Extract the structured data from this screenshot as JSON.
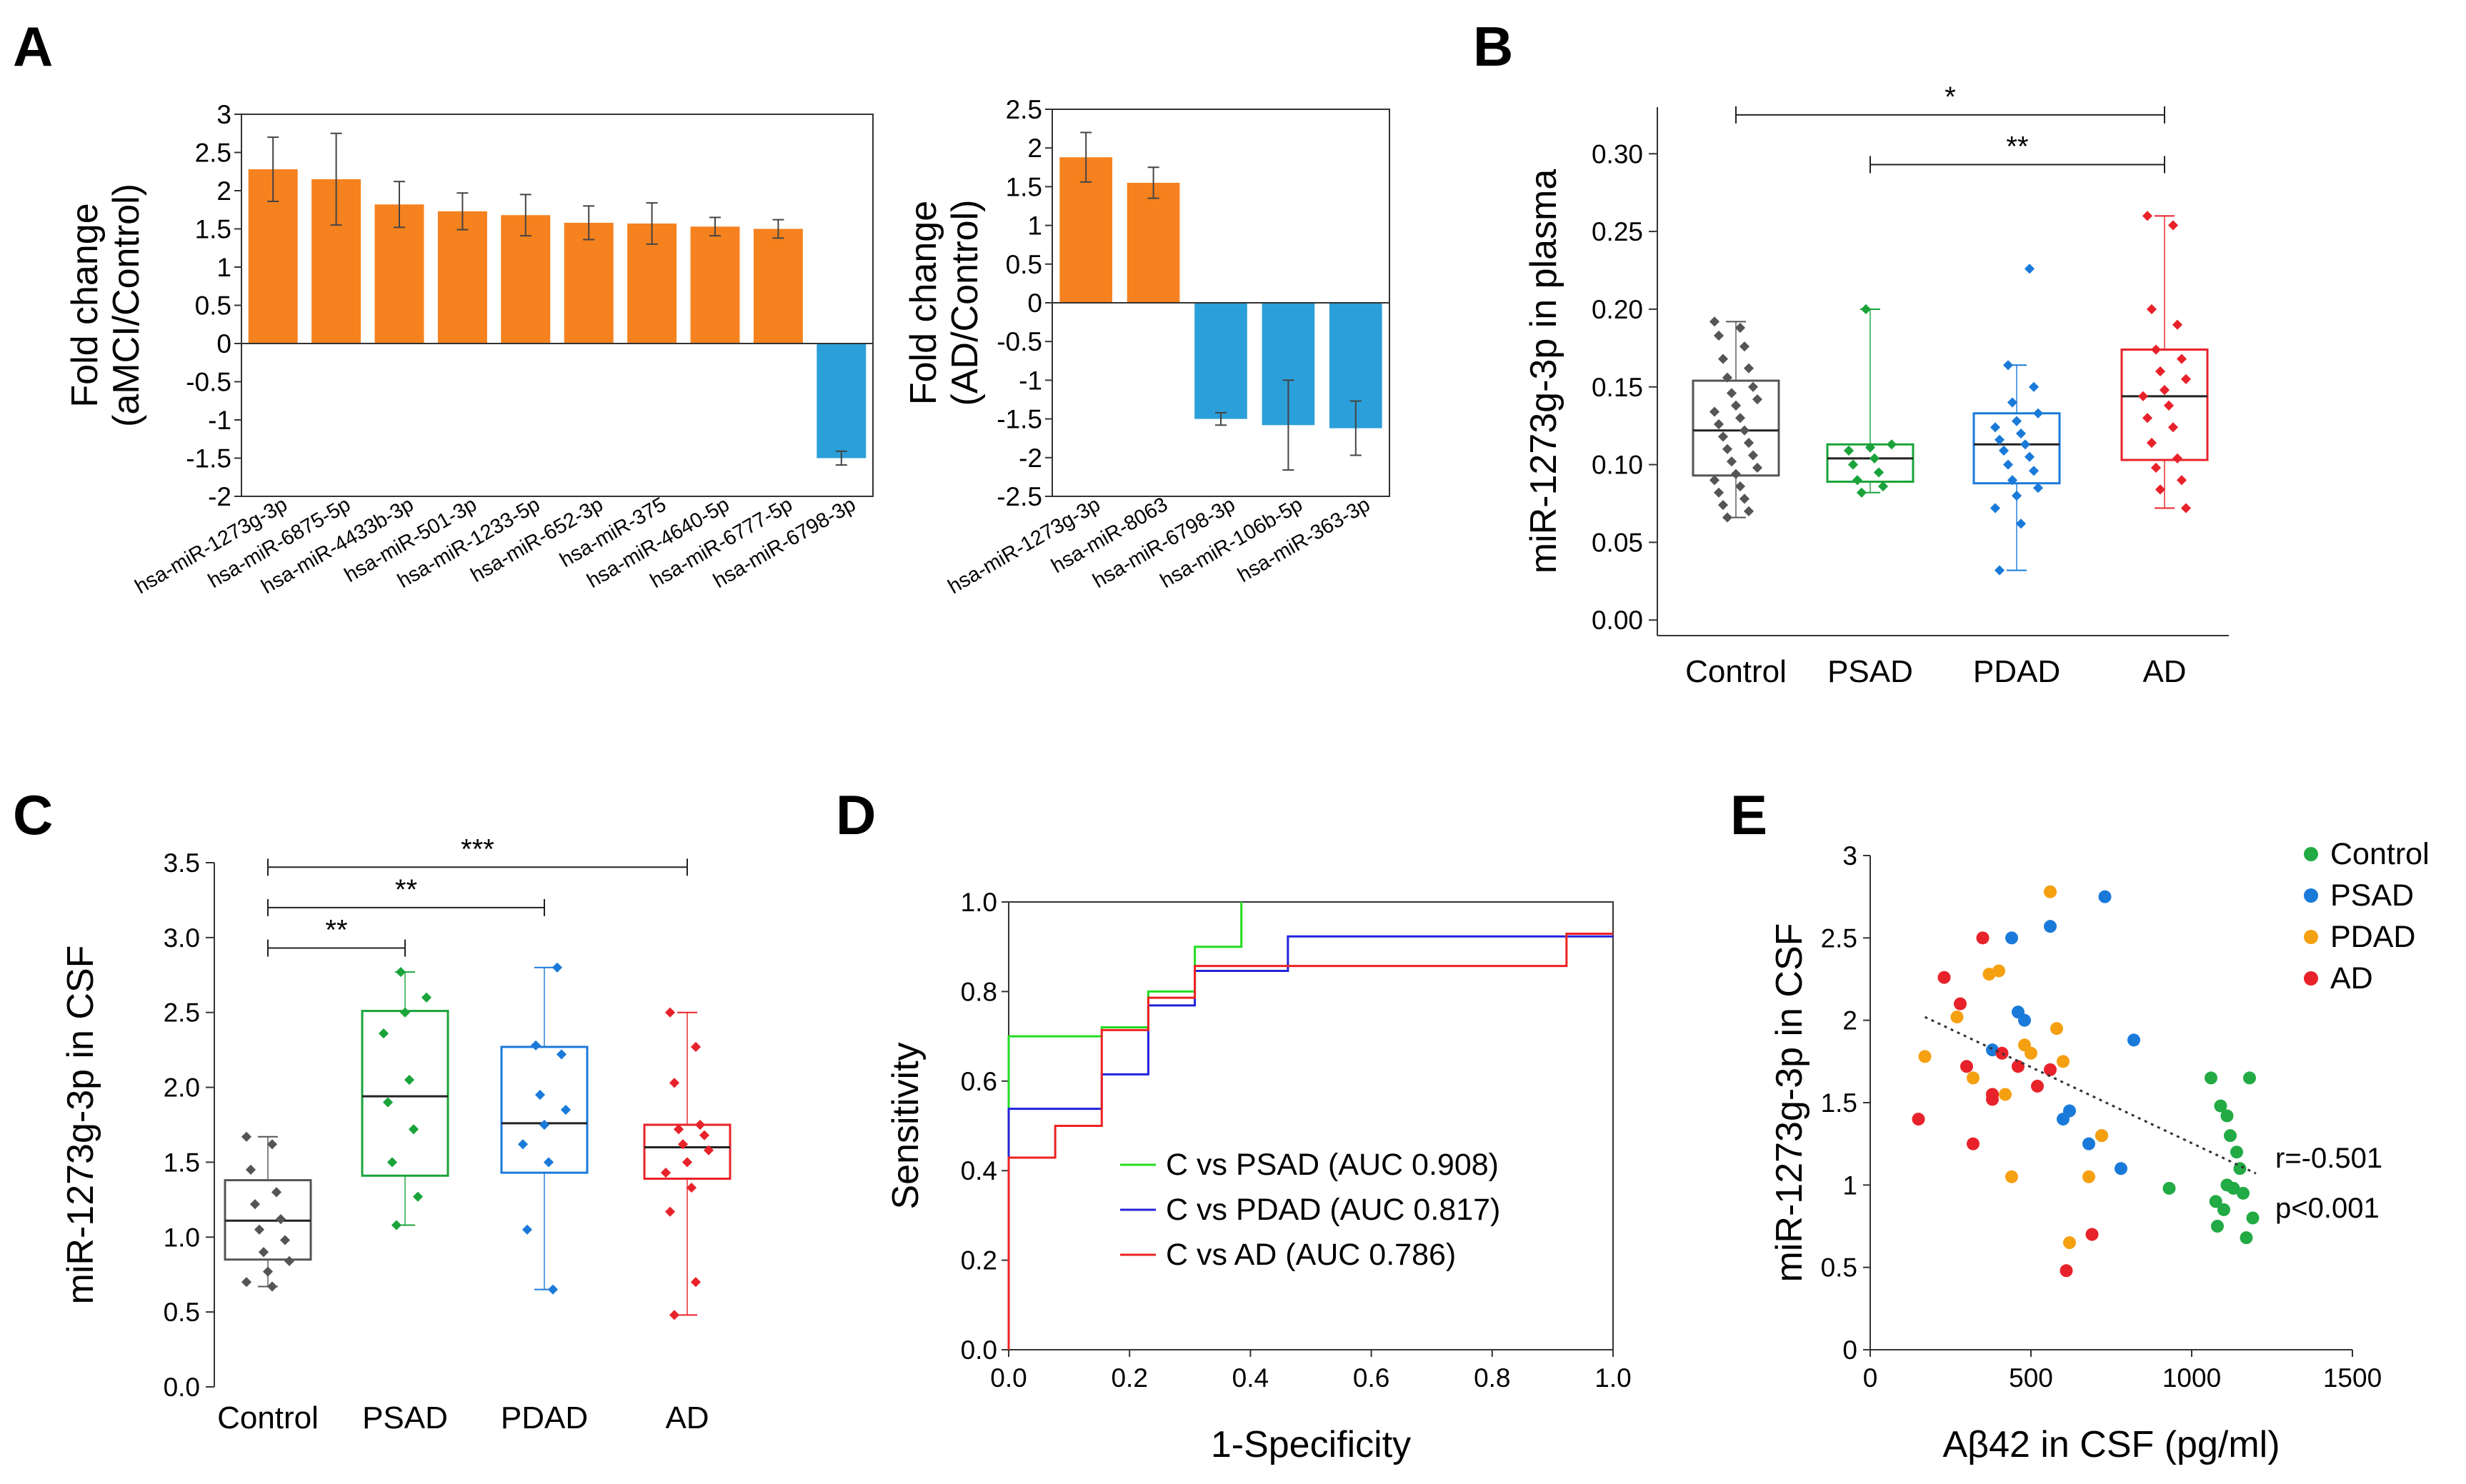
{
  "figure": {
    "panel_labels": [
      "A",
      "B",
      "C",
      "D",
      "E"
    ]
  },
  "chart_data": [
    {
      "panel": "A",
      "type": "bar",
      "ylabel_line1": "Fold change",
      "ylabel_line2": "(aMCI/Control)",
      "ylim": [
        -2,
        3
      ],
      "yticks": [
        "3",
        "2.5",
        "2",
        "1.5",
        "1",
        "0.5",
        "0",
        "-0.5",
        "-1",
        "-1.5",
        "-2"
      ],
      "categories": [
        "hsa-miR-1273g-3p",
        "hsa-miR-6875-5p",
        "hsa-miR-4433b-3p",
        "hsa-miR-501-3p",
        "hsa-miR-1233-5p",
        "hsa-miR-652-3p",
        "hsa-miR-375",
        "hsa-miR-4640-5p",
        "hsa-miR-6777-5p",
        "hsa-miR-6798-3p"
      ],
      "values": [
        2.28,
        2.15,
        1.82,
        1.73,
        1.68,
        1.58,
        1.57,
        1.53,
        1.5,
        -1.5
      ],
      "errors": [
        0.42,
        0.6,
        0.3,
        0.24,
        0.27,
        0.22,
        0.27,
        0.12,
        0.12,
        0.09
      ],
      "colors": {
        "up": "#f5821f",
        "down": "#2b9fd9"
      }
    },
    {
      "panel": "A2",
      "type": "bar",
      "ylabel_line1": "Fold change",
      "ylabel_line2": "(AD/Control)",
      "ylim": [
        -2.5,
        2.5
      ],
      "yticks": [
        "2.5",
        "2",
        "1.5",
        "1",
        "0.5",
        "0",
        "-0.5",
        "-1",
        "-1.5",
        "-2",
        "-2.5"
      ],
      "categories": [
        "hsa-miR-1273g-3p",
        "hsa-miR-8063",
        "hsa-miR-6798-3p",
        "hsa-miR-106b-5p",
        "hsa-miR-363-3p"
      ],
      "values": [
        1.88,
        1.55,
        -1.5,
        -1.58,
        -1.62
      ],
      "errors": [
        0.32,
        0.2,
        0.08,
        0.58,
        0.35
      ],
      "colors": {
        "up": "#f5821f",
        "down": "#2b9fd9"
      }
    },
    {
      "panel": "B",
      "type": "box",
      "ylabel": "miR-1273g-3p in plasma",
      "ylim": [
        -0.01,
        0.33
      ],
      "yticks": [
        "0.00",
        "0.05",
        "0.10",
        "0.15",
        "0.20",
        "0.25",
        "0.30"
      ],
      "categories": [
        "Control",
        "PSAD",
        "PDAD",
        "AD"
      ],
      "colors": [
        "#555555",
        "#1aa33a",
        "#1a7ad9",
        "#e8222a"
      ],
      "boxes": [
        {
          "q1": 0.093,
          "median": 0.122,
          "q3": 0.154,
          "min": 0.066,
          "max": 0.192
        },
        {
          "q1": 0.089,
          "median": 0.104,
          "q3": 0.113,
          "min": 0.082,
          "max": 0.2
        },
        {
          "q1": 0.088,
          "median": 0.113,
          "q3": 0.133,
          "min": 0.032,
          "max": 0.164
        },
        {
          "q1": 0.103,
          "median": 0.144,
          "q3": 0.174,
          "min": 0.072,
          "max": 0.26
        }
      ],
      "points": [
        [
          0.192,
          0.188,
          0.183,
          0.176,
          0.168,
          0.162,
          0.156,
          0.15,
          0.146,
          0.142,
          0.138,
          0.134,
          0.13,
          0.126,
          0.122,
          0.118,
          0.114,
          0.11,
          0.106,
          0.102,
          0.098,
          0.094,
          0.09,
          0.086,
          0.082,
          0.078,
          0.074,
          0.07,
          0.066
        ],
        [
          0.2,
          0.113,
          0.111,
          0.109,
          0.104,
          0.1,
          0.095,
          0.09,
          0.086,
          0.082
        ],
        [
          0.226,
          0.164,
          0.15,
          0.14,
          0.133,
          0.128,
          0.124,
          0.12,
          0.116,
          0.113,
          0.109,
          0.105,
          0.1,
          0.096,
          0.09,
          0.085,
          0.08,
          0.072,
          0.062,
          0.032
        ],
        [
          0.26,
          0.254,
          0.2,
          0.19,
          0.174,
          0.168,
          0.16,
          0.155,
          0.148,
          0.144,
          0.138,
          0.13,
          0.124,
          0.114,
          0.104,
          0.098,
          0.09,
          0.084,
          0.072
        ]
      ],
      "significance": [
        {
          "from": 0,
          "to": 3,
          "label": "*",
          "y": 0.325
        },
        {
          "from": 1,
          "to": 3,
          "label": "**",
          "y": 0.293
        }
      ]
    },
    {
      "panel": "C",
      "type": "box",
      "ylabel": "miR-1273g-3p in CSF",
      "ylim": [
        0,
        3.5
      ],
      "yticks": [
        "0.0",
        "0.5",
        "1.0",
        "1.5",
        "2.0",
        "2.5",
        "3.0",
        "3.5"
      ],
      "categories": [
        "Control",
        "PSAD",
        "PDAD",
        "AD"
      ],
      "colors": [
        "#555555",
        "#1aa33a",
        "#1a7ad9",
        "#e8222a"
      ],
      "boxes": [
        {
          "q1": 0.85,
          "median": 1.11,
          "q3": 1.38,
          "min": 0.67,
          "max": 1.67
        },
        {
          "q1": 1.41,
          "median": 1.94,
          "q3": 2.51,
          "min": 1.08,
          "max": 2.77
        },
        {
          "q1": 1.43,
          "median": 1.76,
          "q3": 2.27,
          "min": 0.65,
          "max": 2.8
        },
        {
          "q1": 1.39,
          "median": 1.6,
          "q3": 1.75,
          "min": 0.48,
          "max": 2.5
        }
      ],
      "points": [
        [
          1.67,
          1.62,
          1.45,
          1.3,
          1.22,
          1.12,
          1.05,
          0.98,
          0.9,
          0.84,
          0.77,
          0.7,
          0.67
        ],
        [
          2.77,
          2.6,
          2.5,
          2.36,
          2.05,
          1.9,
          1.72,
          1.5,
          1.27,
          1.08
        ],
        [
          2.8,
          2.28,
          2.22,
          1.95,
          1.85,
          1.75,
          1.62,
          1.5,
          1.05,
          0.65
        ],
        [
          2.5,
          2.27,
          2.03,
          1.75,
          1.72,
          1.68,
          1.62,
          1.58,
          1.5,
          1.43,
          1.33,
          1.17,
          0.7,
          0.48
        ]
      ],
      "significance": [
        {
          "from": 0,
          "to": 3,
          "label": "***",
          "y": 3.47
        },
        {
          "from": 0,
          "to": 2,
          "label": "**",
          "y": 3.2
        },
        {
          "from": 0,
          "to": 1,
          "label": "**",
          "y": 2.93
        }
      ]
    },
    {
      "panel": "D",
      "type": "line",
      "ylabel": "Sensitivity",
      "xlabel": "1-Specificity",
      "xlim": [
        0,
        1
      ],
      "ylim": [
        0,
        1
      ],
      "xticks": [
        "0.0",
        "0.2",
        "0.4",
        "0.6",
        "0.8",
        "1.0"
      ],
      "yticks": [
        "0.0",
        "0.2",
        "0.4",
        "0.6",
        "0.8",
        "1.0"
      ],
      "series": [
        {
          "name": "C vs PSAD (AUC 0.908)",
          "color": "#22dd22",
          "x": [
            0,
            0,
            0.154,
            0.154,
            0.231,
            0.231,
            0.308,
            0.308,
            0.385,
            0.385
          ],
          "y": [
            0,
            0.7,
            0.7,
            0.72,
            0.72,
            0.8,
            0.8,
            0.9,
            0.9,
            1.0
          ]
        },
        {
          "name": "C vs PDAD (AUC 0.817)",
          "color": "#2222dd",
          "x": [
            0,
            0,
            0.154,
            0.154,
            0.231,
            0.231,
            0.308,
            0.308,
            0.462,
            0.462,
            1.0
          ],
          "y": [
            0,
            0.538,
            0.538,
            0.615,
            0.615,
            0.769,
            0.769,
            0.846,
            0.846,
            0.923,
            0.923
          ]
        },
        {
          "name": "C vs AD (AUC 0.786)",
          "color": "#ee2222",
          "x": [
            0,
            0,
            0.077,
            0.077,
            0.154,
            0.154,
            0.231,
            0.231,
            0.308,
            0.308,
            0.923,
            0.923,
            1.0
          ],
          "y": [
            0,
            0.429,
            0.429,
            0.5,
            0.5,
            0.714,
            0.714,
            0.786,
            0.786,
            0.857,
            0.857,
            0.929,
            0.929
          ]
        }
      ]
    },
    {
      "panel": "E",
      "type": "scatter",
      "ylabel": "miR-1273g-3p in CSF",
      "xlabel": "Aβ42 in CSF (pg/ml)",
      "xlim": [
        0,
        1500
      ],
      "ylim": [
        0,
        3
      ],
      "xticks": [
        "0",
        "500",
        "1000",
        "1500"
      ],
      "yticks": [
        "0",
        "0.5",
        "1",
        "1.5",
        "2",
        "2.5",
        "3"
      ],
      "series": [
        {
          "name": "Control",
          "color": "#22aa44",
          "x": [
            1060,
            1090,
            1110,
            1120,
            1150,
            1180,
            1190,
            1075,
            1100,
            1130,
            1170,
            1080,
            1110,
            1140,
            1160,
            930
          ],
          "y": [
            1.65,
            1.48,
            1.42,
            1.3,
            1.1,
            1.65,
            0.8,
            0.9,
            0.85,
            0.98,
            0.68,
            0.75,
            1.0,
            1.2,
            0.95,
            0.98
          ]
        },
        {
          "name": "PSAD",
          "color": "#1a7ad9",
          "x": [
            440,
            460,
            480,
            560,
            600,
            680,
            730,
            820,
            380,
            620,
            720,
            780
          ],
          "y": [
            2.5,
            2.05,
            2.0,
            2.57,
            1.4,
            1.25,
            2.75,
            1.88,
            1.82,
            1.45,
            1.3,
            1.1
          ]
        },
        {
          "name": "PDAD",
          "color": "#f5a011",
          "x": [
            170,
            270,
            320,
            370,
            400,
            420,
            440,
            480,
            500,
            560,
            580,
            600,
            620,
            680,
            720,
            380
          ],
          "y": [
            1.78,
            2.02,
            1.65,
            2.28,
            2.3,
            1.55,
            1.05,
            1.85,
            1.8,
            2.78,
            1.95,
            1.75,
            0.65,
            1.05,
            1.3,
            1.55
          ]
        },
        {
          "name": "AD",
          "color": "#e8222a",
          "x": [
            150,
            230,
            280,
            300,
            350,
            380,
            410,
            460,
            520,
            560,
            610,
            690,
            380,
            320
          ],
          "y": [
            1.4,
            2.26,
            2.1,
            1.72,
            2.5,
            1.55,
            1.8,
            1.72,
            1.6,
            1.7,
            0.48,
            0.7,
            1.52,
            1.25
          ]
        }
      ],
      "trend": {
        "x": [
          170,
          1200
        ],
        "y": [
          2.02,
          1.07
        ]
      },
      "stats": [
        "r=-0.501",
        "p<0.001"
      ]
    }
  ]
}
